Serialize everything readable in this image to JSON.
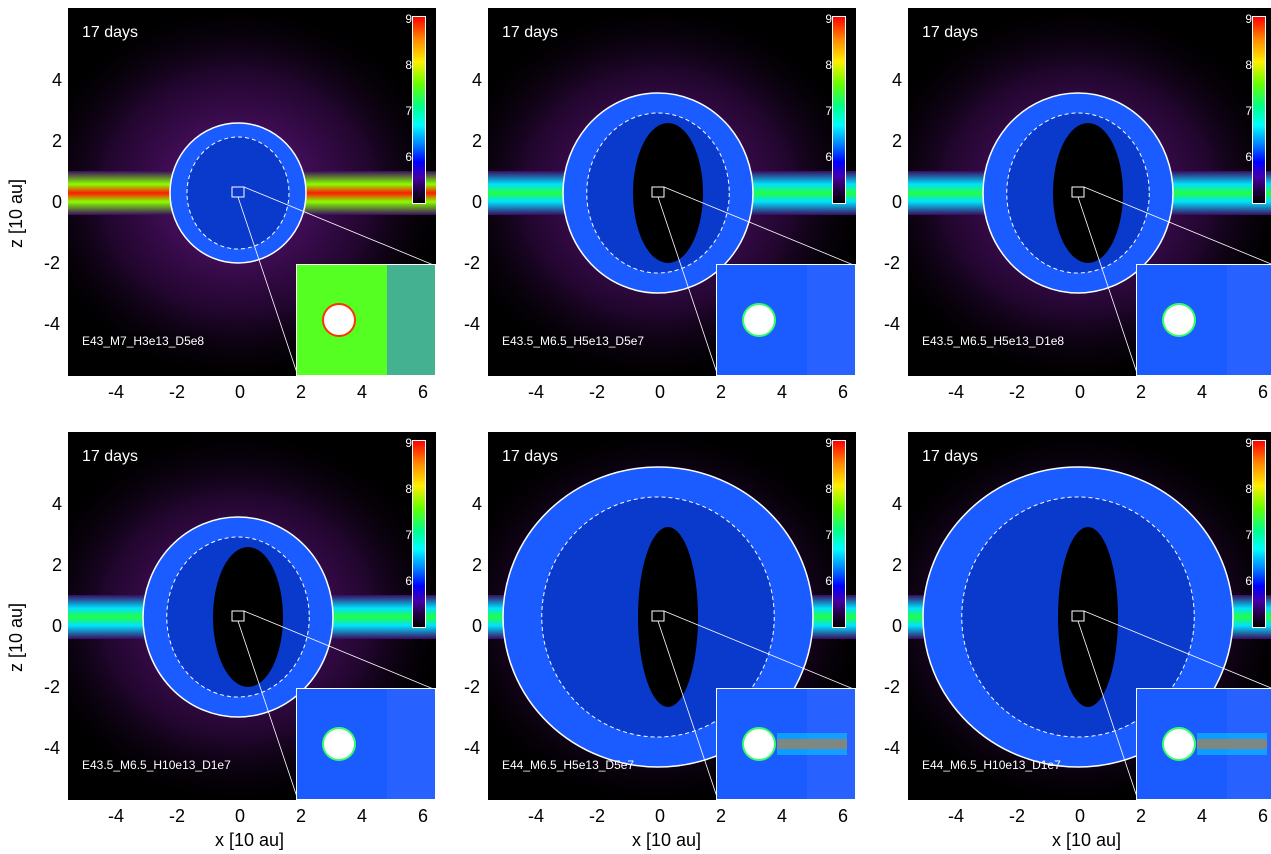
{
  "axes": {
    "ylabel": "z [10 au]",
    "xlabel": "x [10 au]",
    "yticks": [
      "4",
      "2",
      "0",
      "-2",
      "-4"
    ],
    "xticks": [
      "-4",
      "-2",
      "0",
      "2",
      "4",
      "6"
    ]
  },
  "colorbar_ticks": [
    "9",
    "8",
    "7",
    "6"
  ],
  "panels": [
    {
      "time": "17 days",
      "model": "E43_M7_H3e13_D5e8"
    },
    {
      "time": "17 days",
      "model": "E43.5_M6.5_H5e13_D5e7"
    },
    {
      "time": "17 days",
      "model": "E43.5_M6.5_H5e13_D1e8"
    },
    {
      "time": "17 days",
      "model": "E43.5_M6.5_H10e13_D1e7"
    },
    {
      "time": "17 days",
      "model": "E44_M6.5_H5e13_D5e7"
    },
    {
      "time": "17 days",
      "model": "E44_M6.5_H10e13_D1e7"
    }
  ],
  "colors": {
    "background": "#000000",
    "disk_core": "#ff2200",
    "disk_mid": "#66ff00",
    "shell": "#1a5cff",
    "contour": "#ffffff"
  }
}
